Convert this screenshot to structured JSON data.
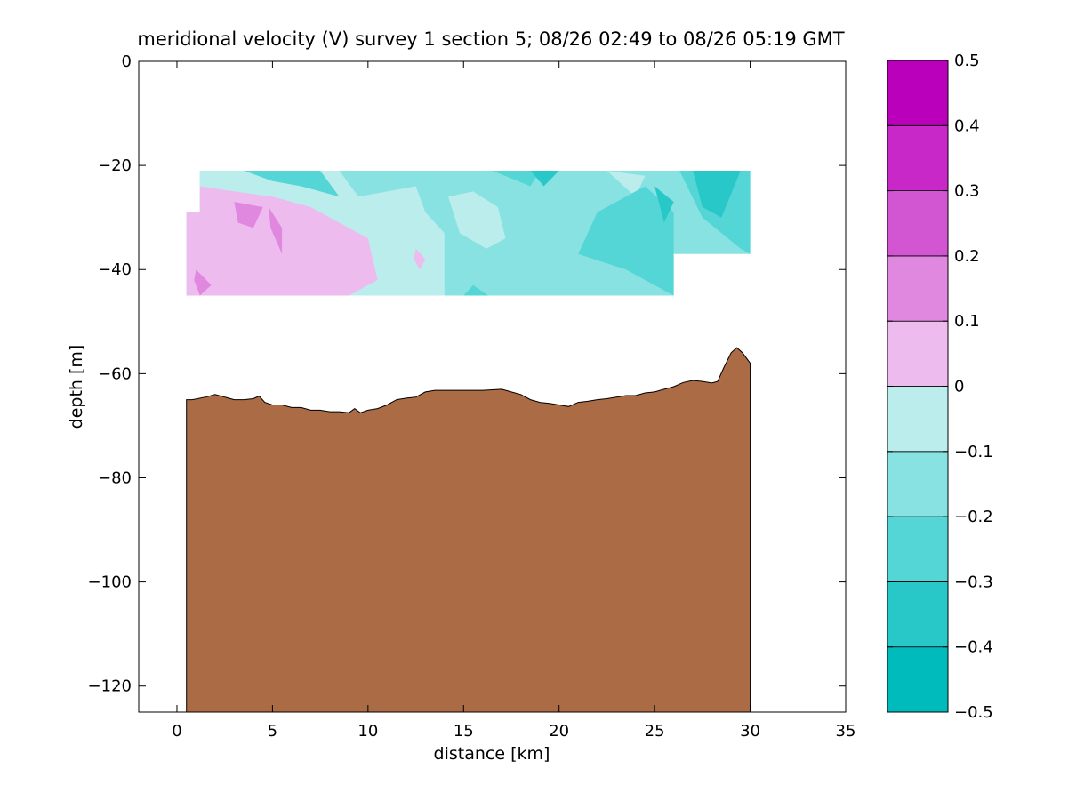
{
  "chart_data": {
    "type": "filled-contour section",
    "title": "meridional velocity (V) survey 1 section 5; 08/26 02:49 to 08/26 05:19 GMT",
    "xlabel": "distance [km]",
    "ylabel": "depth [m]",
    "xlim": [
      -2,
      35
    ],
    "ylim": [
      -125,
      0
    ],
    "xticks": [
      0,
      5,
      10,
      15,
      20,
      25,
      30,
      35
    ],
    "yticks": [
      0,
      -20,
      -40,
      -60,
      -80,
      -100,
      -120
    ],
    "grid": false,
    "colorbar": {
      "levels": [
        -0.5,
        -0.4,
        -0.3,
        -0.2,
        -0.1,
        0,
        0.1,
        0.2,
        0.3,
        0.4,
        0.5
      ],
      "tick_labels": [
        "−0.5",
        "−0.4",
        "−0.3",
        "−0.2",
        "−0.1",
        "0",
        "0.1",
        "0.2",
        "0.3",
        "0.4",
        "0.5"
      ],
      "colors": [
        "#00BBBB",
        "#28C8C8",
        "#55D6D6",
        "#88E2E2",
        "#BBEDED",
        "#EDBBED",
        "#E088E0",
        "#D255D2",
        "#C728C7",
        "#BB00BB"
      ]
    },
    "velocity_field": {
      "x_km_extent": [
        0.5,
        30
      ],
      "depth_m_extent": [
        -21,
        -45
      ],
      "regions": [
        {
          "level_index": 3,
          "points": [
            [
              1.2,
              -21
            ],
            [
              30.0,
              -21
            ],
            [
              30.0,
              -37
            ],
            [
              26.0,
              -37
            ],
            [
              26.0,
              -45
            ],
            [
              0.5,
              -45
            ],
            [
              0.5,
              -29
            ],
            [
              1.2,
              -29
            ]
          ]
        },
        {
          "level_index": 4,
          "points": [
            [
              1.2,
              -21
            ],
            [
              8.5,
              -21
            ],
            [
              9.5,
              -26
            ],
            [
              11,
              -25
            ],
            [
              12.5,
              -24
            ],
            [
              13,
              -29
            ],
            [
              14,
              -33
            ],
            [
              14,
              -45
            ],
            [
              0.5,
              -45
            ],
            [
              0.5,
              -29
            ],
            [
              1.2,
              -29
            ]
          ]
        },
        {
          "level_index": 4,
          "points": [
            [
              14.2,
              -26
            ],
            [
              15.5,
              -25
            ],
            [
              16.8,
              -28
            ],
            [
              17.2,
              -34
            ],
            [
              16.2,
              -36
            ],
            [
              14.8,
              -33
            ]
          ]
        },
        {
          "level_index": 4,
          "points": [
            [
              22.5,
              -21
            ],
            [
              24.5,
              -22
            ],
            [
              24,
              -26
            ]
          ]
        },
        {
          "level_index": 5,
          "points": [
            [
              1.2,
              -24
            ],
            [
              3,
              -25
            ],
            [
              5,
              -26
            ],
            [
              7,
              -28
            ],
            [
              8.5,
              -31
            ],
            [
              10,
              -34
            ],
            [
              10.5,
              -42
            ],
            [
              9,
              -45
            ],
            [
              0.5,
              -45
            ],
            [
              0.5,
              -29
            ],
            [
              1.2,
              -29
            ]
          ]
        },
        {
          "level_index": 5,
          "points": [
            [
              12.5,
              -36
            ],
            [
              13,
              -38
            ],
            [
              12.7,
              -40
            ],
            [
              12.4,
              -38
            ]
          ]
        },
        {
          "level_index": 6,
          "points": [
            [
              3.0,
              -27
            ],
            [
              4.5,
              -28
            ],
            [
              4.0,
              -32
            ],
            [
              3.2,
              -31
            ]
          ]
        },
        {
          "level_index": 6,
          "points": [
            [
              4.8,
              -28
            ],
            [
              5.5,
              -32
            ],
            [
              5.5,
              -37
            ],
            [
              4.9,
              -32
            ]
          ]
        },
        {
          "level_index": 6,
          "points": [
            [
              1.0,
              -40
            ],
            [
              1.8,
              -43
            ],
            [
              1.2,
              -45
            ],
            [
              0.9,
              -42
            ]
          ]
        },
        {
          "level_index": 2,
          "points": [
            [
              16.5,
              -21
            ],
            [
              19,
              -21
            ],
            [
              18.5,
              -24
            ]
          ]
        },
        {
          "level_index": 2,
          "points": [
            [
              26.3,
              -21
            ],
            [
              30,
              -21
            ],
            [
              30,
              -37
            ],
            [
              29.5,
              -36
            ],
            [
              27.5,
              -30
            ]
          ]
        },
        {
          "level_index": 2,
          "points": [
            [
              22,
              -29
            ],
            [
              24.5,
              -24
            ],
            [
              26,
              -29
            ],
            [
              26,
              -45
            ],
            [
              23.5,
              -40
            ],
            [
              21,
              -37
            ]
          ]
        },
        {
          "level_index": 2,
          "points": [
            [
              3.5,
              -21
            ],
            [
              7.5,
              -21
            ],
            [
              8.5,
              -26
            ],
            [
              6.5,
              -24
            ],
            [
              5,
              -23
            ]
          ]
        },
        {
          "level_index": 2,
          "points": [
            [
              15.5,
              -43
            ],
            [
              16.3,
              -45
            ],
            [
              15,
              -45
            ]
          ]
        },
        {
          "level_index": 1,
          "points": [
            [
              27,
              -21
            ],
            [
              29.5,
              -21
            ],
            [
              28.5,
              -30
            ],
            [
              27.5,
              -28
            ]
          ]
        },
        {
          "level_index": 1,
          "points": [
            [
              25,
              -24
            ],
            [
              26,
              -27
            ],
            [
              25.5,
              -31
            ]
          ]
        },
        {
          "level_index": 1,
          "points": [
            [
              18.5,
              -21
            ],
            [
              20,
              -21
            ],
            [
              19.2,
              -24
            ]
          ]
        }
      ]
    },
    "seafloor": {
      "color": "#AA6B45",
      "x_km": [
        0.5,
        0.8,
        1.5,
        2,
        2.5,
        3,
        3.5,
        4,
        4.3,
        4.6,
        5,
        5.5,
        6,
        6.5,
        7,
        7.5,
        8,
        8.5,
        9,
        9.3,
        9.6,
        10,
        10.5,
        11,
        11.5,
        12,
        12.5,
        13,
        13.5,
        14,
        15,
        16,
        17,
        17.5,
        18,
        18.5,
        19,
        19.5,
        20,
        20.5,
        21,
        21.5,
        22,
        22.5,
        23,
        23.5,
        24,
        24.5,
        25,
        25.5,
        26,
        26.5,
        27,
        27.5,
        28,
        28.3,
        28.6,
        29,
        29.3,
        29.6,
        30
      ],
      "depth_m": [
        -65,
        -65,
        -64.5,
        -64,
        -64.5,
        -65,
        -65,
        -64.8,
        -64.3,
        -65.5,
        -66,
        -66,
        -66.5,
        -66.5,
        -67,
        -67,
        -67.3,
        -67.3,
        -67.5,
        -66.7,
        -67.5,
        -67,
        -66.7,
        -66,
        -65,
        -64.7,
        -64.5,
        -63.5,
        -63.2,
        -63.2,
        -63.2,
        -63.2,
        -63,
        -63.5,
        -64,
        -65,
        -65.5,
        -65.7,
        -66,
        -66.3,
        -65.5,
        -65.3,
        -65,
        -64.8,
        -64.5,
        -64.2,
        -64.2,
        -63.7,
        -63.5,
        -63,
        -62.5,
        -61.7,
        -61.3,
        -61.5,
        -61.8,
        -61.5,
        -59,
        -56,
        -55,
        -56,
        -58
      ]
    }
  }
}
